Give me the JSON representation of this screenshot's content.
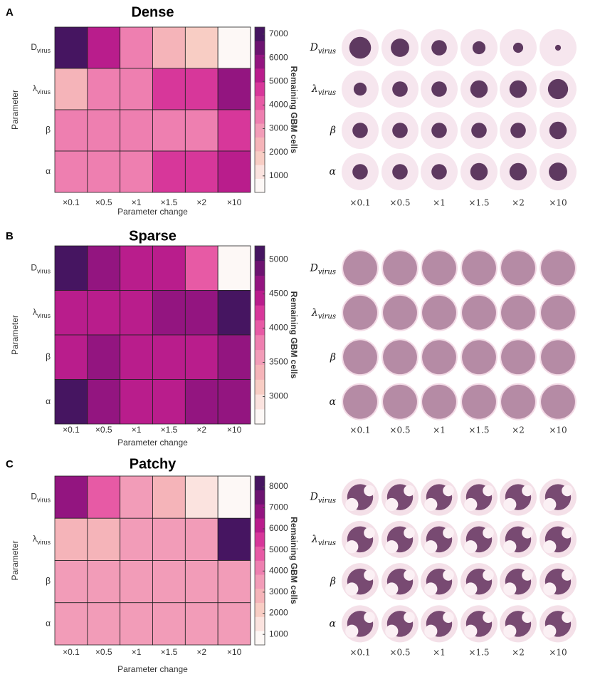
{
  "chart_data": [
    {
      "type": "heatmap",
      "panel": "A",
      "title": "Dense",
      "xlabel": "Parameter change",
      "ylabel": "Parameter",
      "colorbar_label": "Remaining GBM cells",
      "categories": [
        "×0.1",
        "×0.5",
        "×1",
        "×1.5",
        "×2",
        "×10"
      ],
      "rows": [
        {
          "text": "D",
          "sub": "virus"
        },
        {
          "text": "λ",
          "sub": "virus"
        },
        {
          "text": "β"
        },
        {
          "text": "α"
        }
      ],
      "values": [
        [
          7000,
          5000,
          3500,
          2500,
          1500,
          500
        ],
        [
          2500,
          3500,
          3500,
          4500,
          4500,
          6000
        ],
        [
          3500,
          3500,
          3500,
          3500,
          3500,
          4500
        ],
        [
          3500,
          3500,
          3500,
          4500,
          4500,
          5000
        ]
      ],
      "zlim": [
        300,
        7300
      ],
      "zticks": [
        1000,
        2000,
        3000,
        4000,
        5000,
        6000,
        7000
      ],
      "colormap": [
        "#fdf8f6",
        "#fbe3df",
        "#f8cdc4",
        "#f5b4b9",
        "#f29cb8",
        "#ee7fb0",
        "#e75aa5",
        "#d7379a",
        "#b91d8c",
        "#931580",
        "#6d1471",
        "#461561"
      ]
    },
    {
      "type": "heatmap",
      "panel": "B",
      "title": "Sparse",
      "xlabel": "Parameter change",
      "ylabel": "Parameter",
      "colorbar_label": "Remaining GBM cells",
      "categories": [
        "×0.1",
        "×0.5",
        "×1",
        "×1.5",
        "×2",
        "×10"
      ],
      "rows": [
        {
          "text": "D",
          "sub": "virus"
        },
        {
          "text": "λ",
          "sub": "virus"
        },
        {
          "text": "β"
        },
        {
          "text": "α"
        }
      ],
      "values": [
        [
          5100,
          4700,
          4400,
          4400,
          3900,
          2700
        ],
        [
          4400,
          4400,
          4500,
          4700,
          4700,
          5100
        ],
        [
          4400,
          4700,
          4400,
          4400,
          4400,
          4700
        ],
        [
          5100,
          4700,
          4400,
          4500,
          4700,
          4700
        ]
      ],
      "zlim": [
        2600,
        5200
      ],
      "zticks": [
        3000,
        3500,
        4000,
        4500,
        5000
      ],
      "colormap": [
        "#fdf8f6",
        "#fbe3df",
        "#f8cdc4",
        "#f5b4b9",
        "#f29cb8",
        "#ee7fb0",
        "#e75aa5",
        "#d7379a",
        "#b91d8c",
        "#931580",
        "#6d1471",
        "#461561"
      ]
    },
    {
      "type": "heatmap",
      "panel": "C",
      "title": "Patchy",
      "xlabel": "Parameter change",
      "ylabel": "Parameter",
      "colorbar_label": "Remaining GBM cells",
      "categories": [
        "×0.1",
        "×0.5",
        "×1",
        "×1.5",
        "×2",
        "×10"
      ],
      "rows": [
        {
          "text": "D",
          "sub": "virus"
        },
        {
          "text": "λ",
          "sub": "virus"
        },
        {
          "text": "β"
        },
        {
          "text": "α"
        }
      ],
      "values": [
        [
          7000,
          4500,
          3500,
          2500,
          1500,
          700
        ],
        [
          2500,
          2500,
          3500,
          3500,
          3500,
          8000
        ],
        [
          3500,
          3500,
          3500,
          3500,
          3500,
          3500
        ],
        [
          3500,
          3500,
          3500,
          3500,
          3500,
          3500
        ]
      ],
      "zlim": [
        500,
        8500
      ],
      "zticks": [
        1000,
        2000,
        3000,
        4000,
        5000,
        6000,
        7000,
        8000
      ],
      "colormap": [
        "#fdf8f6",
        "#fbe3df",
        "#f8cdc4",
        "#f5b4b9",
        "#f29cb8",
        "#ee7fb0",
        "#e75aa5",
        "#d7379a",
        "#b91d8c",
        "#931580",
        "#6d1471",
        "#461561"
      ]
    }
  ]
}
